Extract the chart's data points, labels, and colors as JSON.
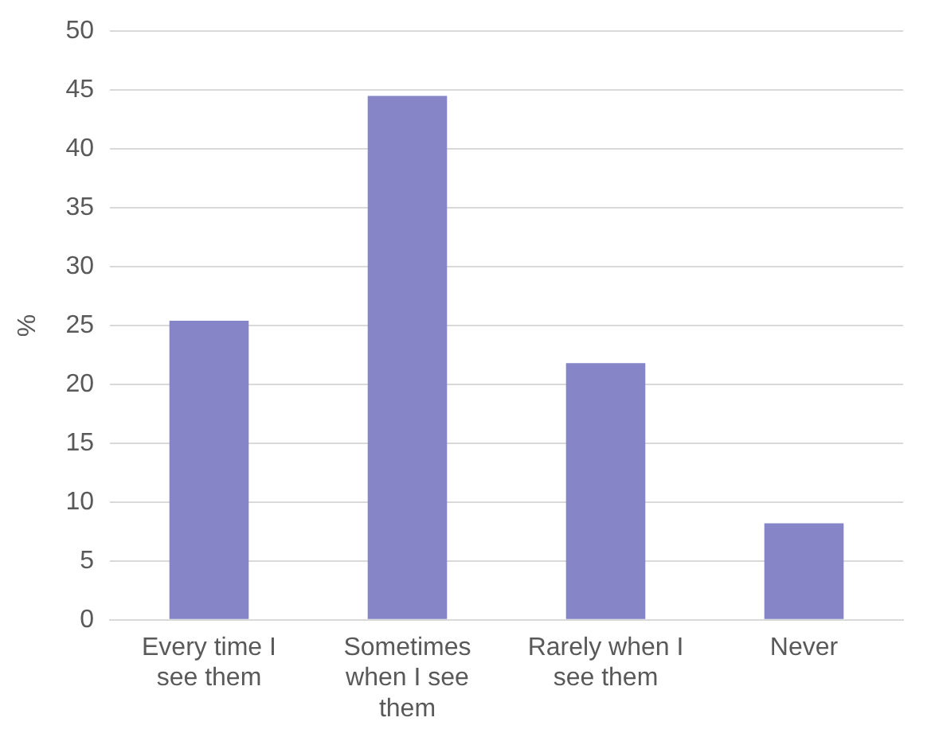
{
  "chart_data": {
    "type": "bar",
    "ylabel": "%",
    "categories": [
      "Every time I see them",
      "Sometimes when I see them",
      "Rarely when I see them",
      "Never"
    ],
    "values": [
      25.4,
      44.5,
      21.8,
      8.2
    ],
    "color": "#8585c8",
    "ylim": [
      0,
      50
    ],
    "yticks": [
      0,
      5,
      10,
      15,
      20,
      25,
      30,
      35,
      40,
      45,
      50
    ],
    "grid": "y",
    "legend": false
  }
}
